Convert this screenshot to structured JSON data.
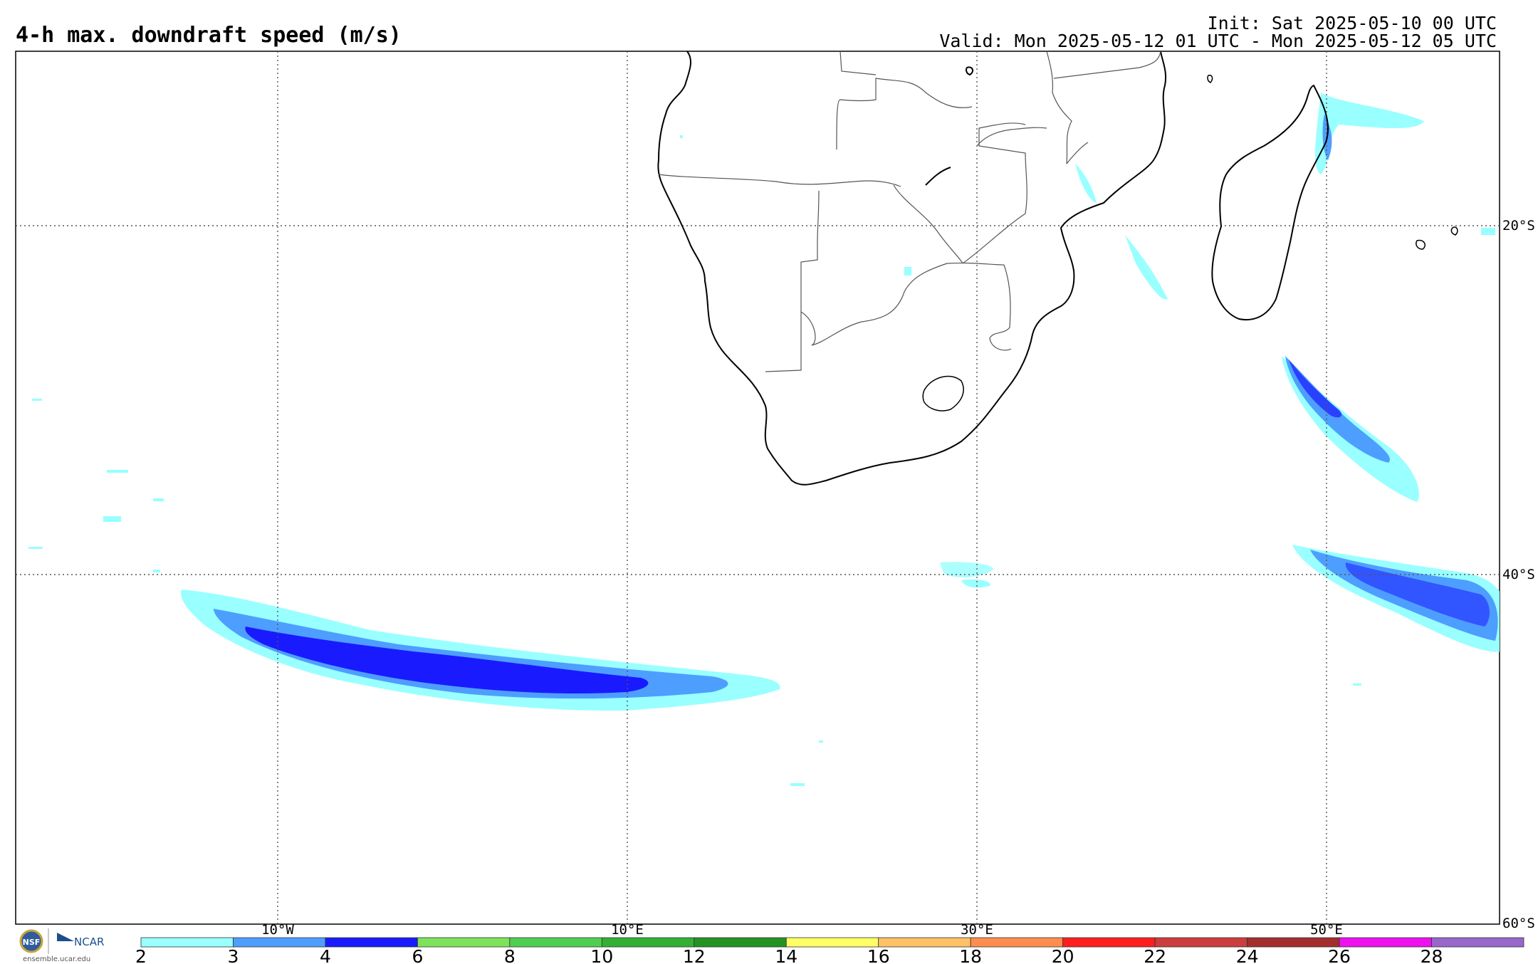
{
  "header": {
    "title": "4-h max. downdraft speed (m/s)",
    "init": "Init: Sat 2025-05-10 00 UTC",
    "valid": "Valid: Mon 2025-05-12 01 UTC - Mon 2025-05-12 05 UTC"
  },
  "map": {
    "lat_labels": [
      "20°S",
      "40°S",
      "60°S"
    ],
    "lon_labels": [
      "10°W",
      "10°E",
      "30°E",
      "50°E"
    ],
    "gridline_color": "#555555",
    "coast_color": "#000000"
  },
  "colorbar": {
    "ticks": [
      "2",
      "3",
      "4",
      "6",
      "8",
      "10",
      "12",
      "14",
      "16",
      "18",
      "20",
      "22",
      "24",
      "26",
      "28"
    ],
    "colors": [
      "#99ffff",
      "#4e9eff",
      "#1a1aff",
      "#7ee35a",
      "#4fcf4f",
      "#33b033",
      "#239423",
      "#ffff66",
      "#ffc166",
      "#ff8d4d",
      "#ff1e1e",
      "#cc3d3d",
      "#a32e2e",
      "#ee11ee",
      "#9966cc"
    ]
  },
  "footer": {
    "logo_text": "NCAR",
    "logo_seal": "NSF",
    "url": "ensemble.ucar.edu"
  }
}
